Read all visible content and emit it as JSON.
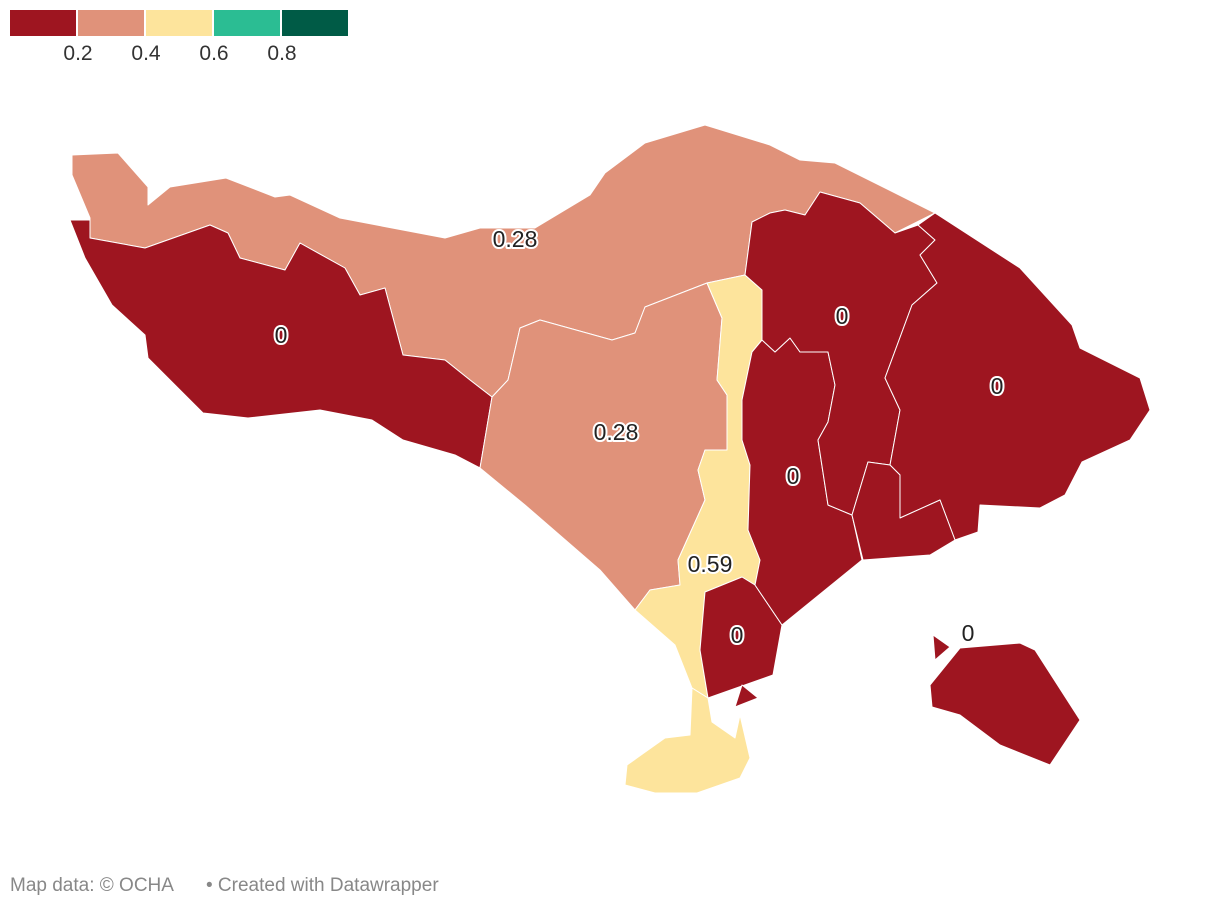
{
  "legend": {
    "colors": [
      "#9e1520",
      "#e0927a",
      "#fde49c",
      "#2bbd93",
      "#005b46"
    ],
    "range": [
      0,
      1
    ],
    "ticks": [
      0.2,
      0.4,
      0.6,
      0.8
    ]
  },
  "regions": [
    {
      "value": 0.28
    },
    {
      "value": 0
    },
    {
      "value": 0.28
    },
    {
      "value": 0.59
    },
    {
      "value": 0
    },
    {
      "value": 0
    },
    {
      "value": 0
    },
    {
      "value": 0
    },
    {
      "value": 0
    }
  ],
  "footer": {
    "source": "Map data: © OCHA",
    "credit": "• Created with Datawrapper"
  }
}
